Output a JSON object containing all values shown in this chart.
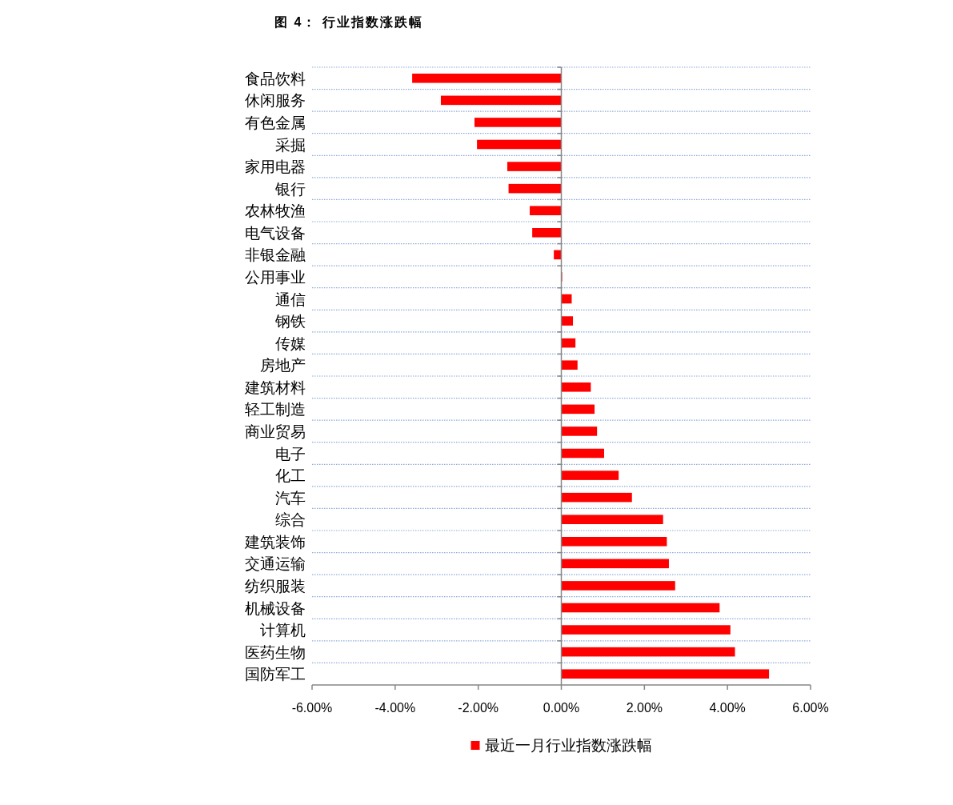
{
  "chart_data": {
    "type": "bar",
    "orientation": "horizontal",
    "title": "图 4： 行业指数涨跌幅",
    "categories": [
      "食品饮料",
      "休闲服务",
      "有色金属",
      "采掘",
      "家用电器",
      "银行",
      "农林牧渔",
      "电气设备",
      "非银金融",
      "公用事业",
      "通信",
      "钢铁",
      "传媒",
      "房地产",
      "建筑材料",
      "轻工制造",
      "商业贸易",
      "电子",
      "化工",
      "汽车",
      "综合",
      "建筑装饰",
      "交通运输",
      "纺织服装",
      "机械设备",
      "计算机",
      "医药生物",
      "国防军工"
    ],
    "series": [
      {
        "name": "最近一月行业指数涨跌幅",
        "color": "#ff0000",
        "values": [
          -3.59,
          -2.9,
          -2.09,
          -2.03,
          -1.3,
          -1.27,
          -0.76,
          -0.7,
          -0.18,
          0.02,
          0.25,
          0.28,
          0.34,
          0.39,
          0.71,
          0.8,
          0.86,
          1.03,
          1.38,
          1.7,
          2.45,
          2.54,
          2.59,
          2.74,
          3.81,
          4.07,
          4.18,
          5.0
        ]
      }
    ],
    "xlim": [
      -6,
      6
    ],
    "xticks": [
      {
        "value": -6,
        "label": "-6.00%"
      },
      {
        "value": -4,
        "label": "-4.00%"
      },
      {
        "value": -2,
        "label": "-2.00%"
      },
      {
        "value": 0,
        "label": "0.00%"
      },
      {
        "value": 2,
        "label": "2.00%"
      },
      {
        "value": 4,
        "label": "4.00%"
      },
      {
        "value": 6,
        "label": "6.00%"
      }
    ],
    "grid": "y",
    "legend": "bottom"
  }
}
